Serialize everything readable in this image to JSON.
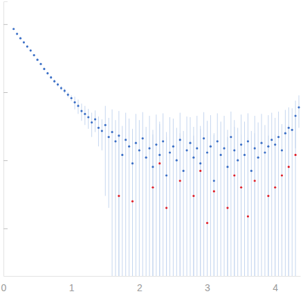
{
  "chart_data": {
    "type": "scatter",
    "log": "y",
    "tick_labels": "x",
    "xlim": [
      0,
      4.37
    ],
    "ylim": [
      0.0002,
      2.16
    ],
    "xticks": [
      0,
      1,
      2,
      3,
      4
    ],
    "yticks": [
      0.001,
      0.01,
      0.1,
      1
    ],
    "series": [
      {
        "color": "#3b6fc6",
        "marker": "circle",
        "x": [
          0.15,
          0.2,
          0.25,
          0.3,
          0.35,
          0.4,
          0.45,
          0.5,
          0.55,
          0.6,
          0.65,
          0.7,
          0.75,
          0.8,
          0.85,
          0.9,
          0.95,
          1.0,
          1.05,
          1.1,
          1.15,
          1.2,
          1.25,
          1.3,
          1.35,
          1.4,
          1.45,
          1.5,
          1.55,
          1.6,
          1.65,
          1.7,
          1.75,
          1.8,
          1.85,
          1.9,
          1.95,
          2.0,
          2.05,
          2.1,
          2.15,
          2.2,
          2.25,
          2.3,
          2.35,
          2.4,
          2.45,
          2.5,
          2.55,
          2.6,
          2.65,
          2.7,
          2.75,
          2.8,
          2.85,
          2.9,
          2.95,
          3.0,
          3.05,
          3.1,
          3.15,
          3.2,
          3.25,
          3.3,
          3.35,
          3.4,
          3.45,
          3.5,
          3.55,
          3.6,
          3.65,
          3.7,
          3.75,
          3.8,
          3.85,
          3.9,
          3.95,
          4.0,
          4.05,
          4.1,
          4.15,
          4.2,
          4.25,
          4.3,
          4.35
        ],
        "values": [
          0.85,
          0.72,
          0.62,
          0.54,
          0.47,
          0.41,
          0.35,
          0.3,
          0.26,
          0.22,
          0.19,
          0.165,
          0.145,
          0.13,
          0.115,
          0.105,
          0.092,
          0.082,
          0.071,
          0.063,
          0.053,
          0.048,
          0.043,
          0.036,
          0.04,
          0.03,
          0.027,
          0.033,
          0.022,
          0.026,
          0.019,
          0.023,
          0.012,
          0.02,
          0.016,
          0.009,
          0.018,
          0.014,
          0.021,
          0.011,
          0.015,
          0.008,
          0.017,
          0.012,
          0.019,
          0.006,
          0.013,
          0.016,
          0.01,
          0.02,
          0.007,
          0.014,
          0.018,
          0.011,
          0.015,
          0.009,
          0.021,
          0.013,
          0.016,
          0.005,
          0.019,
          0.012,
          0.015,
          0.008,
          0.022,
          0.014,
          0.01,
          0.017,
          0.012,
          0.019,
          0.007,
          0.015,
          0.011,
          0.018,
          0.013,
          0.016,
          0.02,
          0.017,
          0.022,
          0.014,
          0.025,
          0.03,
          0.028,
          0.045,
          0.06
        ],
        "errors": [
          0.02,
          0.02,
          0.018,
          0.016,
          0.015,
          0.014,
          0.013,
          0.012,
          0.011,
          0.01,
          0.009,
          0.009,
          0.008,
          0.008,
          0.008,
          0.008,
          0.008,
          0.008,
          0.015,
          0.015,
          0.015,
          0.015,
          0.014,
          0.014,
          0.014,
          0.014,
          0.013,
          0.03,
          0.02,
          0.03,
          0.02,
          0.03,
          0.02,
          0.03,
          0.025,
          0.02,
          0.03,
          0.025,
          0.03,
          0.02,
          0.03,
          0.02,
          0.03,
          0.025,
          0.03,
          0.02,
          0.03,
          0.025,
          0.02,
          0.03,
          0.02,
          0.03,
          0.025,
          0.02,
          0.03,
          0.02,
          0.03,
          0.025,
          0.03,
          0.02,
          0.03,
          0.025,
          0.03,
          0.02,
          0.03,
          0.025,
          0.02,
          0.03,
          0.025,
          0.03,
          0.02,
          0.03,
          0.025,
          0.03,
          0.02,
          0.03,
          0.03,
          0.025,
          0.03,
          0.02,
          0.03,
          0.03,
          0.03,
          0.03,
          0.03
        ]
      },
      {
        "color": "#e0202a",
        "marker": "circle",
        "x": [
          1.7,
          1.9,
          2.2,
          2.3,
          2.4,
          2.6,
          2.8,
          2.9,
          3.0,
          3.1,
          3.3,
          3.4,
          3.5,
          3.6,
          3.7,
          3.9,
          4.0,
          4.1,
          4.2,
          4.3
        ],
        "values": [
          0.003,
          0.0025,
          0.004,
          0.009,
          0.002,
          0.005,
          0.003,
          0.007,
          0.0012,
          0.0035,
          0.002,
          0.006,
          0.004,
          0.0015,
          0.005,
          0.003,
          0.004,
          0.006,
          0.008,
          0.012
        ],
        "errors": [
          0.02,
          0.02,
          0.02,
          0.025,
          0.02,
          0.02,
          0.02,
          0.025,
          0.02,
          0.02,
          0.02,
          0.025,
          0.02,
          0.02,
          0.02,
          0.02,
          0.02,
          0.025,
          0.025,
          0.03
        ]
      }
    ]
  }
}
